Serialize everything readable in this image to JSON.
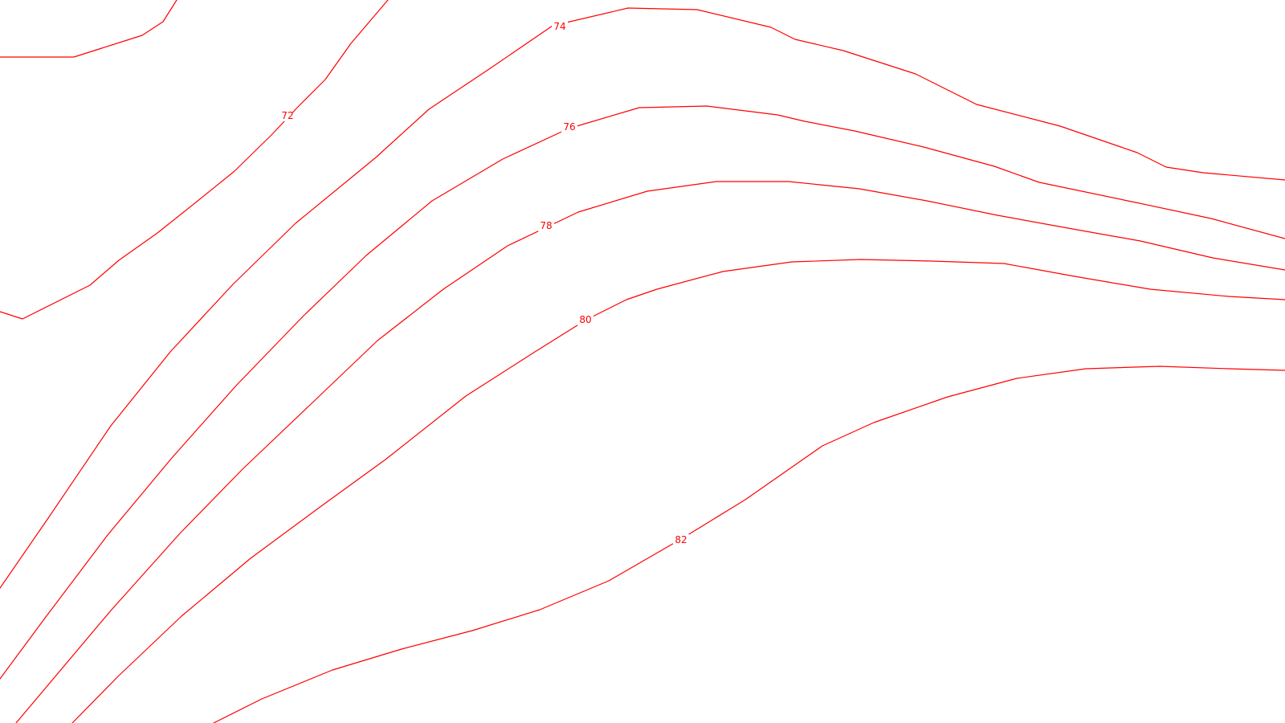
{
  "map": {
    "line_color": "#ff0000",
    "background_color": "#ffffff",
    "contour_labels": [
      "72",
      "74",
      "76",
      "78",
      "80",
      "82"
    ]
  }
}
